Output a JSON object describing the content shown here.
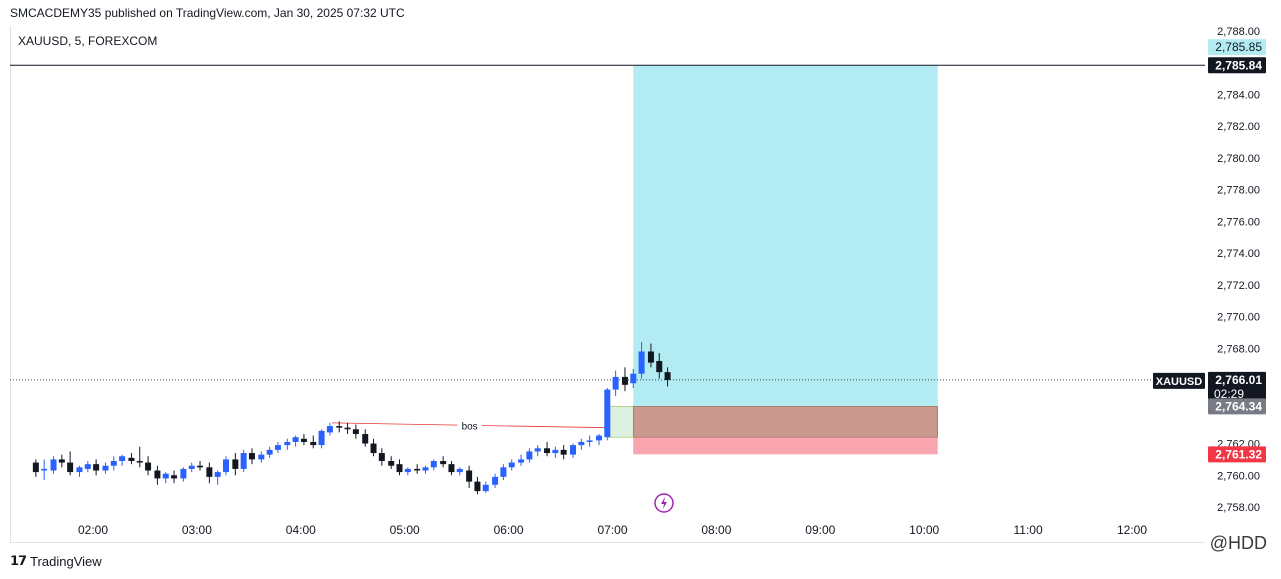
{
  "header": {
    "published": "SMCACDEMY35 published on TradingView.com, Jan 30, 2025 07:32 UTC",
    "symbol": "XAUUSD, 5, FOREXCOM"
  },
  "footer": {
    "brand": "TradingView",
    "watermark": "@HDD"
  },
  "colors": {
    "bull": "#2962ff",
    "bear": "#131722",
    "target_zone": "#b2ebf2",
    "stop_zone": "#f8a5b0",
    "entry_zone": "#c8e6c9",
    "overlap_zone": "#c9968a",
    "bos_line": "#e53935"
  },
  "chart_data": {
    "type": "candlestick",
    "title": "XAUUSD, 5, FOREXCOM",
    "ylim": [
      2757,
      2789
    ],
    "y_ticks": [
      "2,788.00",
      "2,784.00",
      "2,782.00",
      "2,780.00",
      "2,778.00",
      "2,776.00",
      "2,774.00",
      "2,772.00",
      "2,770.00",
      "2,768.00",
      "2,762.00",
      "2,760.00",
      "2,758.00"
    ],
    "y_tick_values": [
      2788,
      2784,
      2782,
      2780,
      2778,
      2776,
      2774,
      2772,
      2770,
      2768,
      2762,
      2760,
      2758
    ],
    "x_ticks": [
      "02:00",
      "03:00",
      "04:00",
      "05:00",
      "06:00",
      "07:00",
      "08:00",
      "09:00",
      "10:00",
      "11:00",
      "12:00"
    ],
    "x_tick_hours": [
      2,
      3,
      4,
      5,
      6,
      7,
      8,
      9,
      10,
      11,
      12
    ],
    "x_start_hour": 1.45,
    "x_end_hour": 12.5,
    "candles": [
      {
        "t": 1.45,
        "o": 2760.8,
        "h": 2761.0,
        "c": 2760.2,
        "l": 2759.9
      },
      {
        "t": 1.53,
        "o": 2760.3,
        "h": 2761.0,
        "c": 2760.4,
        "l": 2759.7
      },
      {
        "t": 1.62,
        "o": 2760.3,
        "h": 2761.2,
        "c": 2761.0,
        "l": 2760.1
      },
      {
        "t": 1.7,
        "o": 2761.0,
        "h": 2761.3,
        "c": 2760.8,
        "l": 2760.5
      },
      {
        "t": 1.78,
        "o": 2760.8,
        "h": 2761.5,
        "c": 2760.2,
        "l": 2760.0
      },
      {
        "t": 1.87,
        "o": 2760.2,
        "h": 2760.6,
        "c": 2760.5,
        "l": 2759.9
      },
      {
        "t": 1.95,
        "o": 2760.4,
        "h": 2760.9,
        "c": 2760.7,
        "l": 2760.2
      },
      {
        "t": 2.03,
        "o": 2760.7,
        "h": 2761.0,
        "c": 2760.3,
        "l": 2760.0
      },
      {
        "t": 2.12,
        "o": 2760.3,
        "h": 2760.8,
        "c": 2760.6,
        "l": 2760.1
      },
      {
        "t": 2.2,
        "o": 2760.6,
        "h": 2761.2,
        "c": 2760.9,
        "l": 2760.3
      },
      {
        "t": 2.28,
        "o": 2760.9,
        "h": 2761.3,
        "c": 2761.2,
        "l": 2760.6
      },
      {
        "t": 2.37,
        "o": 2761.1,
        "h": 2761.4,
        "c": 2760.9,
        "l": 2760.7
      },
      {
        "t": 2.45,
        "o": 2760.9,
        "h": 2761.8,
        "c": 2760.8,
        "l": 2760.5
      },
      {
        "t": 2.53,
        "o": 2760.8,
        "h": 2761.2,
        "c": 2760.3,
        "l": 2760.0
      },
      {
        "t": 2.62,
        "o": 2760.3,
        "h": 2760.6,
        "c": 2759.8,
        "l": 2759.4
      },
      {
        "t": 2.7,
        "o": 2759.8,
        "h": 2760.2,
        "c": 2760.1,
        "l": 2759.5
      },
      {
        "t": 2.78,
        "o": 2760.0,
        "h": 2760.3,
        "c": 2759.8,
        "l": 2759.5
      },
      {
        "t": 2.87,
        "o": 2759.8,
        "h": 2760.5,
        "c": 2760.4,
        "l": 2759.6
      },
      {
        "t": 2.95,
        "o": 2760.4,
        "h": 2760.8,
        "c": 2760.6,
        "l": 2760.2
      },
      {
        "t": 3.03,
        "o": 2760.6,
        "h": 2760.9,
        "c": 2760.5,
        "l": 2760.3
      },
      {
        "t": 3.12,
        "o": 2760.5,
        "h": 2760.8,
        "c": 2759.9,
        "l": 2759.5
      },
      {
        "t": 3.2,
        "o": 2759.9,
        "h": 2760.3,
        "c": 2760.2,
        "l": 2759.4
      },
      {
        "t": 3.28,
        "o": 2760.2,
        "h": 2761.2,
        "c": 2761.0,
        "l": 2760.0
      },
      {
        "t": 3.37,
        "o": 2761.0,
        "h": 2761.4,
        "c": 2760.4,
        "l": 2760.0
      },
      {
        "t": 3.45,
        "o": 2760.4,
        "h": 2761.6,
        "c": 2761.4,
        "l": 2760.2
      },
      {
        "t": 3.53,
        "o": 2761.4,
        "h": 2761.7,
        "c": 2761.0,
        "l": 2760.7
      },
      {
        "t": 3.62,
        "o": 2761.0,
        "h": 2761.5,
        "c": 2761.3,
        "l": 2760.8
      },
      {
        "t": 3.7,
        "o": 2761.3,
        "h": 2761.8,
        "c": 2761.6,
        "l": 2761.1
      },
      {
        "t": 3.78,
        "o": 2761.6,
        "h": 2762.1,
        "c": 2761.9,
        "l": 2761.4
      },
      {
        "t": 3.87,
        "o": 2761.9,
        "h": 2762.3,
        "c": 2762.1,
        "l": 2761.6
      },
      {
        "t": 3.95,
        "o": 2762.1,
        "h": 2762.5,
        "c": 2762.4,
        "l": 2761.8
      },
      {
        "t": 4.03,
        "o": 2762.3,
        "h": 2762.6,
        "c": 2762.1,
        "l": 2761.9
      },
      {
        "t": 4.12,
        "o": 2762.1,
        "h": 2762.5,
        "c": 2761.9,
        "l": 2761.7
      },
      {
        "t": 4.2,
        "o": 2761.9,
        "h": 2762.9,
        "c": 2762.8,
        "l": 2761.7
      },
      {
        "t": 4.28,
        "o": 2762.7,
        "h": 2763.3,
        "c": 2763.1,
        "l": 2762.5
      },
      {
        "t": 4.37,
        "o": 2763.1,
        "h": 2763.4,
        "c": 2763.0,
        "l": 2762.7
      },
      {
        "t": 4.45,
        "o": 2763.0,
        "h": 2763.3,
        "c": 2762.9,
        "l": 2762.6
      },
      {
        "t": 4.53,
        "o": 2762.9,
        "h": 2763.2,
        "c": 2762.6,
        "l": 2762.3
      },
      {
        "t": 4.62,
        "o": 2762.6,
        "h": 2762.9,
        "c": 2762.0,
        "l": 2761.8
      },
      {
        "t": 4.7,
        "o": 2762.0,
        "h": 2762.3,
        "c": 2761.4,
        "l": 2761.2
      },
      {
        "t": 4.78,
        "o": 2761.4,
        "h": 2761.7,
        "c": 2760.9,
        "l": 2760.6
      },
      {
        "t": 4.87,
        "o": 2760.9,
        "h": 2761.2,
        "c": 2760.6,
        "l": 2760.4
      },
      {
        "t": 4.95,
        "o": 2760.7,
        "h": 2761.0,
        "c": 2760.2,
        "l": 2760.0
      },
      {
        "t": 5.03,
        "o": 2760.2,
        "h": 2760.5,
        "c": 2760.4,
        "l": 2760.0
      },
      {
        "t": 5.12,
        "o": 2760.4,
        "h": 2760.7,
        "c": 2760.3,
        "l": 2760.1
      },
      {
        "t": 5.2,
        "o": 2760.3,
        "h": 2760.6,
        "c": 2760.5,
        "l": 2760.1
      },
      {
        "t": 5.28,
        "o": 2760.5,
        "h": 2761.0,
        "c": 2760.9,
        "l": 2760.3
      },
      {
        "t": 5.37,
        "o": 2760.9,
        "h": 2761.2,
        "c": 2760.7,
        "l": 2760.5
      },
      {
        "t": 5.45,
        "o": 2760.7,
        "h": 2760.9,
        "c": 2760.2,
        "l": 2760.0
      },
      {
        "t": 5.53,
        "o": 2760.2,
        "h": 2760.5,
        "c": 2760.4,
        "l": 2760.0
      },
      {
        "t": 5.62,
        "o": 2760.3,
        "h": 2760.6,
        "c": 2759.6,
        "l": 2759.2
      },
      {
        "t": 5.7,
        "o": 2759.6,
        "h": 2759.9,
        "c": 2759.0,
        "l": 2758.8
      },
      {
        "t": 5.78,
        "o": 2759.0,
        "h": 2759.6,
        "c": 2759.4,
        "l": 2758.9
      },
      {
        "t": 5.87,
        "o": 2759.4,
        "h": 2760.1,
        "c": 2759.9,
        "l": 2759.2
      },
      {
        "t": 5.95,
        "o": 2759.9,
        "h": 2760.7,
        "c": 2760.5,
        "l": 2759.7
      },
      {
        "t": 6.03,
        "o": 2760.5,
        "h": 2761.0,
        "c": 2760.8,
        "l": 2760.3
      },
      {
        "t": 6.12,
        "o": 2760.8,
        "h": 2761.3,
        "c": 2761.0,
        "l": 2760.6
      },
      {
        "t": 6.2,
        "o": 2761.0,
        "h": 2761.7,
        "c": 2761.5,
        "l": 2760.8
      },
      {
        "t": 6.28,
        "o": 2761.5,
        "h": 2761.9,
        "c": 2761.7,
        "l": 2761.2
      },
      {
        "t": 6.37,
        "o": 2761.7,
        "h": 2762.1,
        "c": 2761.4,
        "l": 2761.2
      },
      {
        "t": 6.45,
        "o": 2761.4,
        "h": 2761.8,
        "c": 2761.6,
        "l": 2761.1
      },
      {
        "t": 6.53,
        "o": 2761.6,
        "h": 2761.9,
        "c": 2761.3,
        "l": 2761.0
      },
      {
        "t": 6.62,
        "o": 2761.3,
        "h": 2762.0,
        "c": 2761.9,
        "l": 2761.1
      },
      {
        "t": 6.7,
        "o": 2761.9,
        "h": 2762.3,
        "c": 2762.1,
        "l": 2761.6
      },
      {
        "t": 6.78,
        "o": 2762.1,
        "h": 2762.5,
        "c": 2762.2,
        "l": 2761.8
      },
      {
        "t": 6.87,
        "o": 2762.2,
        "h": 2762.6,
        "c": 2762.5,
        "l": 2761.9
      },
      {
        "t": 6.95,
        "o": 2762.4,
        "h": 2765.5,
        "c": 2765.4,
        "l": 2762.2
      },
      {
        "t": 7.03,
        "o": 2765.4,
        "h": 2766.6,
        "c": 2766.2,
        "l": 2765.0
      },
      {
        "t": 7.12,
        "o": 2766.2,
        "h": 2766.8,
        "c": 2765.7,
        "l": 2765.3
      },
      {
        "t": 7.2,
        "o": 2765.8,
        "h": 2766.7,
        "c": 2766.4,
        "l": 2765.5
      },
      {
        "t": 7.28,
        "o": 2766.4,
        "h": 2768.4,
        "c": 2767.8,
        "l": 2766.1
      },
      {
        "t": 7.37,
        "o": 2767.8,
        "h": 2768.3,
        "c": 2767.1,
        "l": 2766.8
      },
      {
        "t": 7.45,
        "o": 2767.2,
        "h": 2767.7,
        "c": 2766.5,
        "l": 2766.1
      },
      {
        "t": 7.53,
        "o": 2766.5,
        "h": 2766.8,
        "c": 2766.0,
        "l": 2765.6
      }
    ],
    "position": {
      "type": "long",
      "start_hour": 7.2,
      "end_hour": 10.13,
      "target": 2785.85,
      "entry": 2764.34,
      "stop": 2761.32
    },
    "zone": {
      "start_hour": 6.95,
      "end_hour": 10.13,
      "top": 2764.34,
      "bottom": 2762.4
    },
    "horizontal_line": 2785.84,
    "last_price": 2766.01,
    "bos": {
      "label": "bos",
      "start_hour": 4.3,
      "end_hour": 6.95,
      "start_price": 2763.3,
      "end_price": 2763.0
    },
    "price_labels": [
      {
        "value": 2785.85,
        "text": "2,785.85",
        "bg": "#b2ebf2",
        "fg": "#131722"
      },
      {
        "value": 2785.84,
        "text": "2,785.84",
        "bg": "#131722",
        "fg": "#ffffff"
      },
      {
        "value": 2766.01,
        "text": "2,766.01",
        "bg": "#131722",
        "fg": "#ffffff",
        "sub": "02:29",
        "tag": "XAUUSD"
      },
      {
        "value": 2764.34,
        "text": "2,764.34",
        "bg": "#787b86",
        "fg": "#ffffff"
      },
      {
        "value": 2761.32,
        "text": "2,761.32",
        "bg": "#f23645",
        "fg": "#ffffff"
      }
    ]
  }
}
